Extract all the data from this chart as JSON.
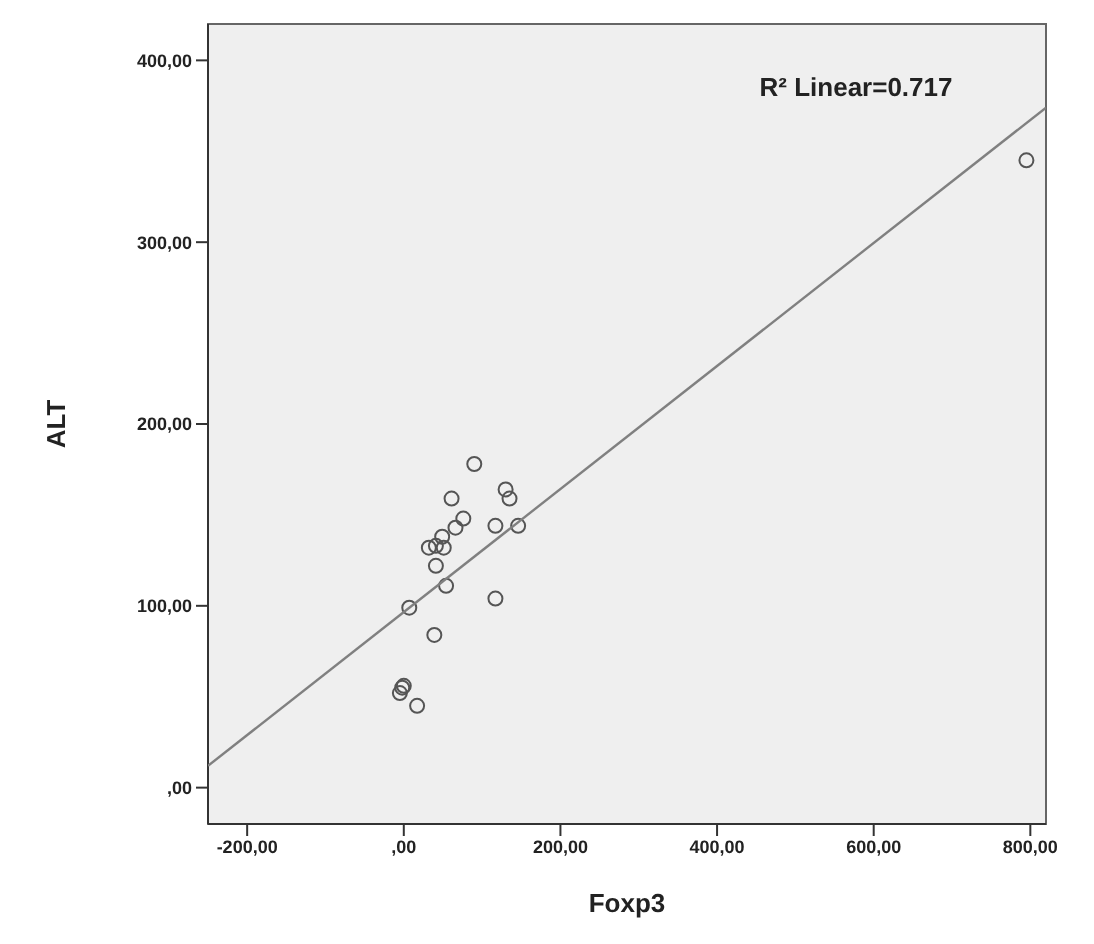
{
  "chart_data": {
    "type": "scatter",
    "xlabel": "Foxp3",
    "ylabel": "ALT",
    "annotations": [
      "R² Linear=0.717"
    ],
    "xlim": [
      -250,
      820
    ],
    "ylim": [
      -20,
      420
    ],
    "xticks": [
      {
        "value": -200,
        "label": "-200,00"
      },
      {
        "value": 0,
        "label": ",00"
      },
      {
        "value": 200,
        "label": "200,00"
      },
      {
        "value": 400,
        "label": "400,00"
      },
      {
        "value": 600,
        "label": "600,00"
      },
      {
        "value": 800,
        "label": "800,00"
      }
    ],
    "yticks": [
      {
        "value": 0,
        "label": ",00"
      },
      {
        "value": 100,
        "label": "100,00"
      },
      {
        "value": 200,
        "label": "200,00"
      },
      {
        "value": 300,
        "label": "300,00"
      },
      {
        "value": 400,
        "label": "400,00"
      }
    ],
    "series": [
      {
        "marker": "circle",
        "color": "#555555",
        "x": [
          795,
          90,
          130,
          135,
          61,
          76,
          117,
          146,
          49,
          41,
          32,
          51,
          66,
          41,
          54,
          117,
          7,
          39,
          -2,
          -5,
          0,
          17
        ],
        "values": [
          345,
          178,
          164,
          159,
          159,
          148,
          144,
          144,
          138,
          133,
          132,
          132,
          143,
          122,
          111,
          104,
          99,
          84,
          55,
          52,
          56,
          45
        ]
      },
      {
        "type": "line",
        "marker": "none",
        "color": "#808080",
        "line_style": "solid",
        "x": [
          -250,
          820
        ],
        "values": [
          12,
          374
        ]
      }
    ]
  }
}
